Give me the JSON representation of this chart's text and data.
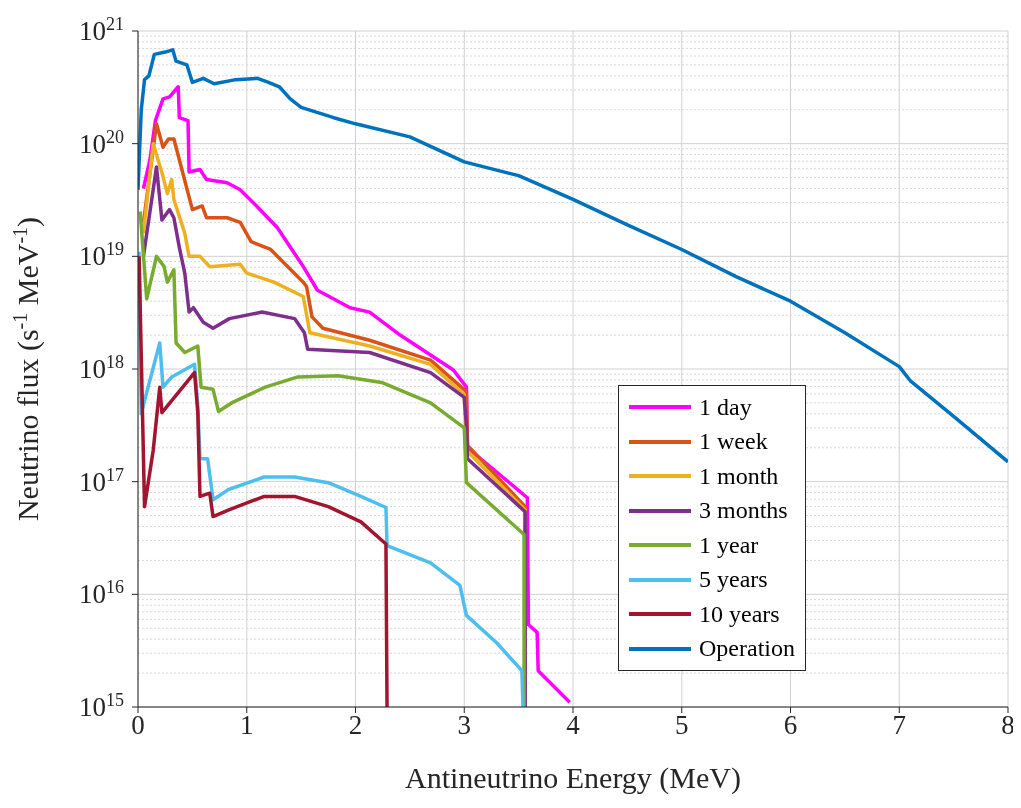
{
  "chart_data": {
    "type": "line",
    "xlabel": "Antineutrino Energy (MeV)",
    "ylabel": "Neutrino flux (s$^{-1}$ MeV$^{-1}$)",
    "log": "y",
    "grid": true,
    "legend": "bottom right",
    "line_style": "solid",
    "marker": "none",
    "xlim": [
      0,
      8
    ],
    "xticks": [
      0,
      1,
      2,
      3,
      4,
      5,
      6,
      7,
      8
    ],
    "ylim": [
      1000000000000000.0,
      1e+21
    ],
    "yticks": [
      {
        "value": 1000000000000000.0,
        "label": "10$^{15}$"
      },
      {
        "value": 1e+16,
        "label": "10$^{16}$"
      },
      {
        "value": 1e+17,
        "label": "10$^{17}$"
      },
      {
        "value": 1e+18,
        "label": "10$^{18}$"
      },
      {
        "value": 1e+19,
        "label": "10$^{19}$"
      },
      {
        "value": 1e+20,
        "label": "10$^{20}$"
      },
      {
        "value": 1e+21,
        "label": "10$^{21}$"
      }
    ],
    "series": [
      {
        "name": "1 day",
        "color": "#ff00ff",
        "x": [
          0.05,
          0.11,
          0.16,
          0.23,
          0.29,
          0.37,
          0.38,
          0.46,
          0.47,
          0.57,
          0.63,
          0.82,
          0.94,
          1.09,
          1.28,
          1.52,
          1.65,
          1.95,
          2.13,
          2.41,
          2.9,
          3.02,
          3.03,
          3.58,
          3.59,
          3.67,
          3.68,
          3.97
        ],
        "values": [
          4e+19,
          7.2e+19,
          1.6e+20,
          2.5e+20,
          2.6e+20,
          3.2e+20,
          1.7e+20,
          1.6e+20,
          5.6e+19,
          5.9e+19,
          4.8e+19,
          4.5e+19,
          3.9e+19,
          2.8e+19,
          1.8e+19,
          8.1e+18,
          5e+18,
          3.5e+18,
          3.2e+18,
          2e+18,
          9.8e+17,
          6.9e+17,
          2e+17,
          7.2e+16,
          5400000000000000.0,
          4600000000000000.0,
          2100000000000000.0,
          1100000000000000.0
        ]
      },
      {
        "name": "1 week",
        "color": "#d95319",
        "x": [
          0.05,
          0.17,
          0.23,
          0.28,
          0.33,
          0.38,
          0.5,
          0.59,
          0.63,
          0.82,
          0.94,
          1.04,
          1.22,
          1.52,
          1.55,
          1.6,
          1.7,
          2.13,
          2.69,
          3.02,
          3.03,
          3.56,
          3.56
        ],
        "values": [
          2e+19,
          1.5e+20,
          9.3e+19,
          1.1e+20,
          1.1e+20,
          7.2e+19,
          2.6e+19,
          2.8e+19,
          2.2e+19,
          2.2e+19,
          2e+19,
          1.35e+19,
          1.15e+19,
          5.9e+18,
          5.4e+18,
          2.9e+18,
          2.3e+18,
          1.8e+18,
          1.2e+18,
          6.3e+17,
          2.1e+17,
          6e+16,
          1000000000000000.0
        ]
      },
      {
        "name": "1 month",
        "color": "#edb120",
        "x": [
          0.05,
          0.14,
          0.23,
          0.27,
          0.31,
          0.33,
          0.43,
          0.47,
          0.57,
          0.66,
          0.94,
          1.0,
          1.25,
          1.52,
          1.58,
          2.13,
          2.69,
          3.0,
          3.02,
          3.56,
          3.56
        ],
        "values": [
          1.6e+19,
          1e+20,
          5.1e+19,
          3.6e+19,
          4.8e+19,
          3.2e+19,
          1.6e+19,
          1e+19,
          1e+19,
          8.1e+18,
          8.5e+18,
          7.1e+18,
          5.9e+18,
          4.4e+18,
          2.1e+18,
          1.6e+18,
          1.1e+18,
          5.9e+17,
          1.9e+17,
          5.6e+16,
          1000000000000000.0
        ]
      },
      {
        "name": "3 months",
        "color": "#7e2f8e",
        "x": [
          0.05,
          0.17,
          0.22,
          0.29,
          0.33,
          0.38,
          0.43,
          0.47,
          0.51,
          0.6,
          0.69,
          0.84,
          1.14,
          1.44,
          1.53,
          1.56,
          2.13,
          2.69,
          3.0,
          3.02,
          3.03,
          3.56,
          3.56
        ],
        "values": [
          1e+19,
          6.2e+19,
          2.1e+19,
          2.6e+19,
          2.2e+19,
          1.2e+19,
          7.1e+18,
          3.2e+18,
          3.5e+18,
          2.6e+18,
          2.3e+18,
          2.8e+18,
          3.2e+18,
          2.8e+18,
          2.1e+18,
          1.5e+18,
          1.4e+18,
          9.3e+17,
          5.6e+17,
          3.1e+17,
          1.6e+17,
          5.4e+16,
          1000000000000000.0
        ]
      },
      {
        "name": "1 year",
        "color": "#77ac30",
        "x": [
          0.02,
          0.08,
          0.17,
          0.24,
          0.27,
          0.33,
          0.35,
          0.43,
          0.55,
          0.58,
          0.69,
          0.74,
          0.86,
          1.17,
          1.47,
          1.84,
          2.24,
          2.69,
          3.0,
          3.02,
          3.55,
          3.55
        ],
        "values": [
          2.5e+19,
          4.2e+18,
          1e+19,
          8.1e+18,
          5.9e+18,
          7.6e+18,
          1.7e+18,
          1.4e+18,
          1.6e+18,
          6.9e+17,
          6.6e+17,
          4.2e+17,
          5e+17,
          6.9e+17,
          8.5e+17,
          8.7e+17,
          7.6e+17,
          5e+17,
          3e+17,
          9.8e+16,
          3.4e+16,
          1000000000000000.0
        ]
      },
      {
        "name": "5 years",
        "color": "#4dbeee",
        "x": [
          0.01,
          0.03,
          0.08,
          0.2,
          0.23,
          0.31,
          0.52,
          0.55,
          0.57,
          0.64,
          0.69,
          0.83,
          1.16,
          1.44,
          1.75,
          2.05,
          2.28,
          2.29,
          2.69,
          2.96,
          3.02,
          3.3,
          3.53,
          3.54
        ],
        "values": [
          1.1e+19,
          4e+17,
          6.2e+17,
          1.7e+18,
          6.9e+17,
          8.5e+17,
          1.1e+18,
          4.7e+17,
          1.6e+17,
          1.6e+17,
          6.9e+16,
          8.5e+16,
          1.1e+17,
          1.1e+17,
          9.8e+16,
          7.4e+16,
          5.9e+16,
          2.7e+16,
          1.9e+16,
          1.2e+16,
          6500000000000000.0,
          3700000000000000.0,
          2100000000000000.0,
          1000000000000000.0
        ]
      },
      {
        "name": "10 years",
        "color": "#a2142f",
        "x": [
          0.01,
          0.06,
          0.14,
          0.2,
          0.22,
          0.52,
          0.55,
          0.57,
          0.66,
          0.69,
          0.83,
          1.16,
          1.44,
          1.75,
          2.05,
          2.28,
          2.29
        ],
        "values": [
          1e+19,
          6e+16,
          1.9e+17,
          6.9e+17,
          4.1e+17,
          9.3e+17,
          4.1e+17,
          7.4e+16,
          7.9e+16,
          4.9e+16,
          5.6e+16,
          7.4e+16,
          7.4e+16,
          6e+16,
          4.4e+16,
          2.8e+16,
          1000000000000000.0
        ]
      },
      {
        "name": "Operation",
        "color": "#0072bd",
        "x": [
          0,
          0.03,
          0.06,
          0.1,
          0.15,
          0.25,
          0.32,
          0.35,
          0.45,
          0.5,
          0.6,
          0.7,
          0.9,
          1.1,
          1.2,
          1.3,
          1.4,
          1.5,
          1.8,
          2.0,
          2.5,
          3.0,
          3.5,
          4.0,
          4.5,
          5.0,
          5.5,
          6.0,
          6.5,
          7.0,
          7.1,
          7.5,
          8.0
        ],
        "values": [
          3.9e+19,
          2e+20,
          3.7e+20,
          4e+20,
          6.2e+20,
          6.5e+20,
          6.8e+20,
          5.4e+20,
          5e+20,
          3.5e+20,
          3.8e+20,
          3.4e+20,
          3.7e+20,
          3.8e+20,
          3.5e+20,
          3.2e+20,
          2.5e+20,
          2.1e+20,
          1.7e+20,
          1.5e+20,
          1.15e+20,
          6.9e+19,
          5.2e+19,
          3.2e+19,
          1.9e+19,
          1.15e+19,
          6.6e+18,
          4e+18,
          2.1e+18,
          1.05e+18,
          7.9e+17,
          3.8e+17,
          1.5e+17
        ]
      }
    ]
  }
}
